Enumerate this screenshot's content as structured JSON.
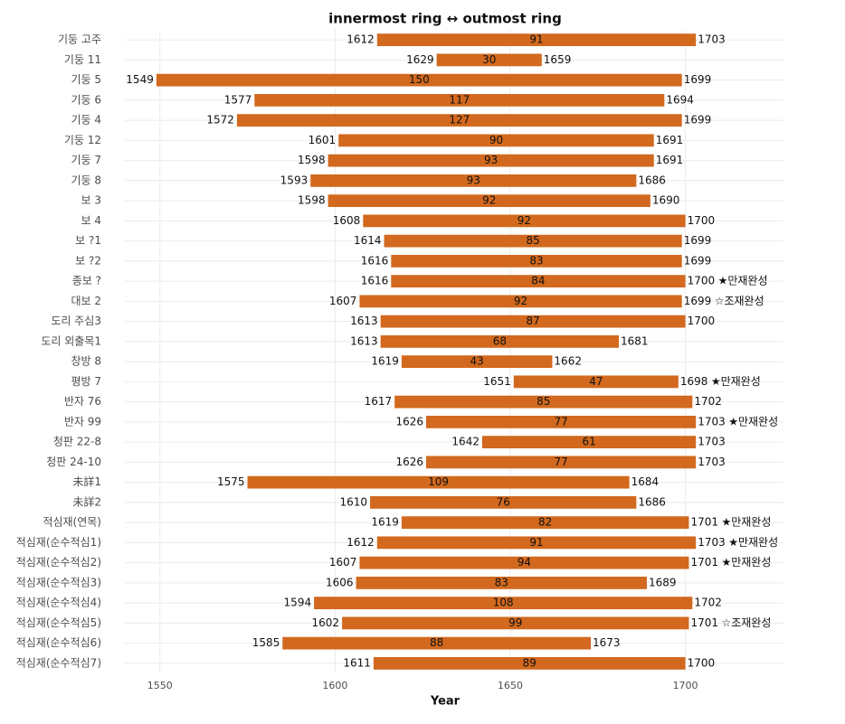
{
  "chart_data": {
    "type": "range-bar",
    "title": "innermost ring ↔ outmost ring",
    "xlabel": "Year",
    "categories": [
      "기둥 고주",
      "기둥 11",
      "기둥 5",
      "기둥 6",
      "기둥 4",
      "기둥 12",
      "기둥 7",
      "기둥 8",
      "보 3",
      "보 4",
      "보 ?1",
      "보 ?2",
      "종보 ?",
      "대보 2",
      "도리 주심3",
      "도리 외출목1",
      "창방 8",
      "평방 7",
      "반자 76",
      "반자 99",
      "청판 22-8",
      "청판 24-10",
      "未詳1",
      "未詳2",
      "적심재(연목)",
      "적심재(순수적심1)",
      "적심재(순수적심2)",
      "적심재(순수적심3)",
      "적심재(순수적심4)",
      "적심재(순수적심5)",
      "적심재(순수적심6)",
      "적심재(순수적심7)"
    ],
    "start": [
      1612,
      1629,
      1549,
      1577,
      1572,
      1601,
      1598,
      1593,
      1598,
      1608,
      1614,
      1616,
      1616,
      1607,
      1613,
      1613,
      1619,
      1651,
      1617,
      1626,
      1642,
      1626,
      1575,
      1610,
      1619,
      1612,
      1607,
      1606,
      1594,
      1602,
      1585,
      1611
    ],
    "end": [
      1703,
      1659,
      1699,
      1694,
      1699,
      1691,
      1691,
      1686,
      1690,
      1700,
      1699,
      1699,
      1700,
      1699,
      1700,
      1681,
      1662,
      1698,
      1702,
      1703,
      1703,
      1703,
      1684,
      1686,
      1701,
      1703,
      1701,
      1689,
      1702,
      1701,
      1673,
      1700
    ],
    "span": [
      91,
      30,
      150,
      117,
      127,
      90,
      93,
      93,
      92,
      92,
      85,
      83,
      84,
      92,
      87,
      68,
      43,
      47,
      85,
      77,
      61,
      77,
      109,
      76,
      82,
      91,
      94,
      83,
      108,
      99,
      88,
      89
    ],
    "notes": [
      null,
      null,
      null,
      null,
      null,
      null,
      null,
      null,
      null,
      null,
      null,
      null,
      "★만재완성",
      "☆조재완성",
      null,
      null,
      null,
      "★만재완성",
      null,
      "★만재완성",
      null,
      null,
      null,
      null,
      "★만재완성",
      "★만재완성",
      "★만재완성",
      null,
      null,
      "☆조재완성",
      null,
      null
    ],
    "color": "#d2691e",
    "xlim": [
      1540,
      1728
    ],
    "xticks": [
      1550,
      1600,
      1650,
      1700
    ],
    "grid": true
  }
}
